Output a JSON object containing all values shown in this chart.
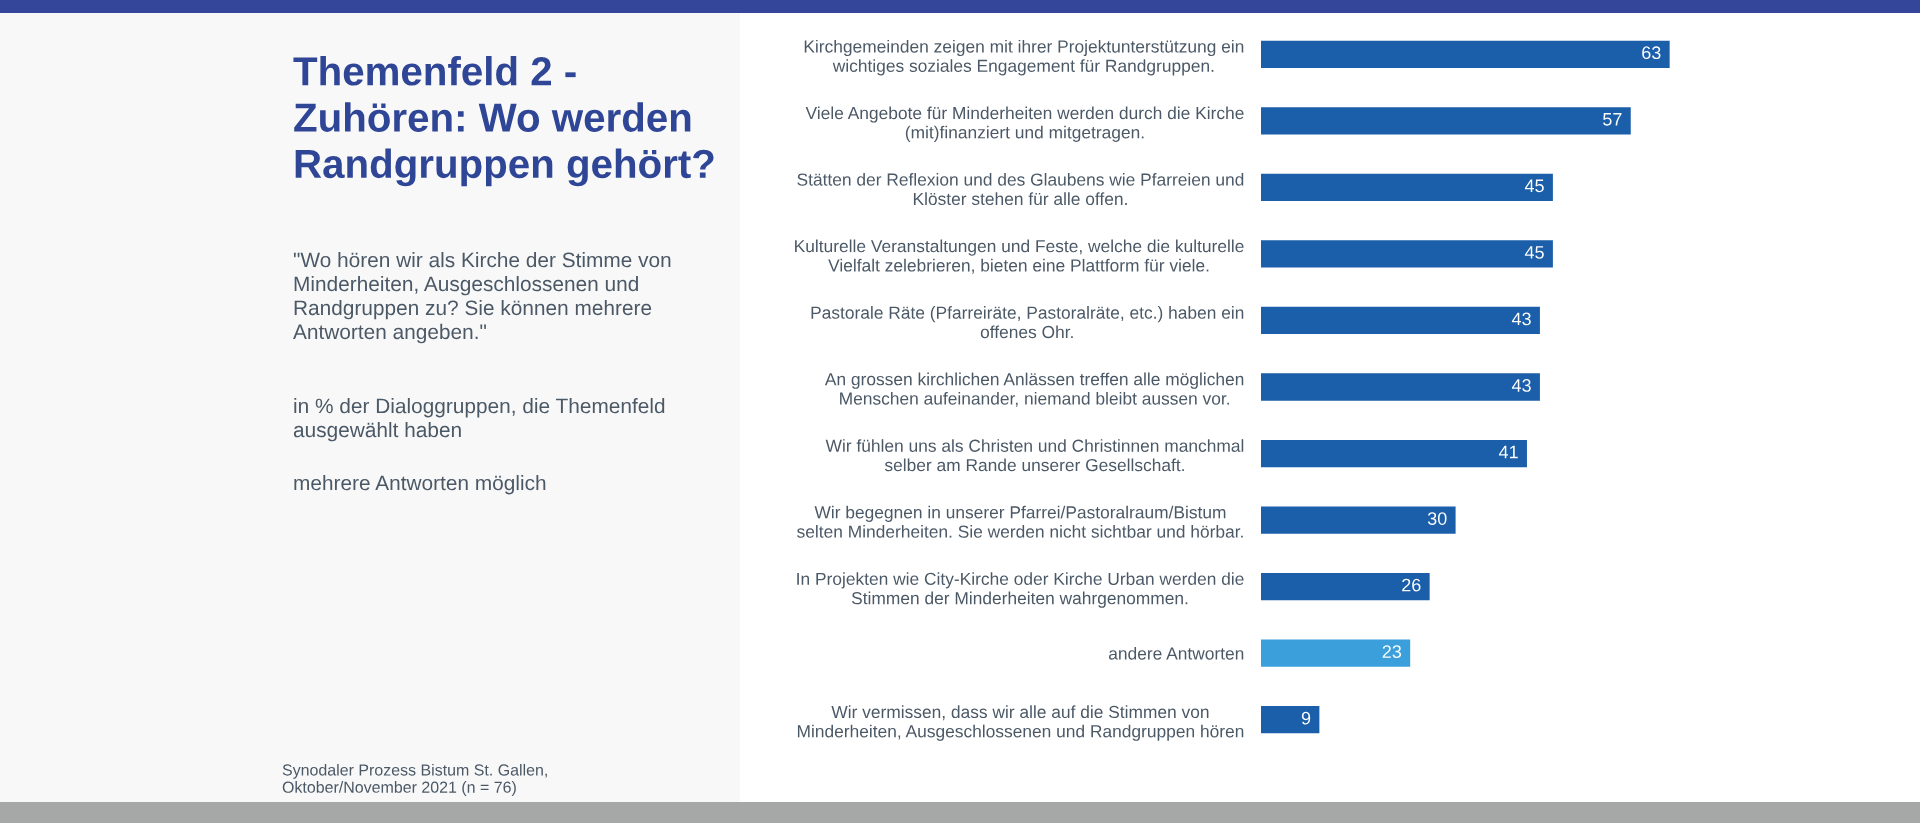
{
  "chart_data": {
    "type": "bar",
    "orientation": "horizontal",
    "title": "Themenfeld 2 -\nZuhören: Wo werden\nRandgruppen gehört?",
    "subtitle": "\"Wo hören wir als Kirche der Stimme von\nMinderheiten, Ausgeschlossenen und\nRandgruppen zu? Sie können mehrere\nAntworten angeben.\"",
    "annotations": [
      "in % der Dialoggruppen, die Themenfeld\nausgewählt haben",
      "mehrere Antworten möglich",
      "Synodaler Prozess Bistum St. Gallen,\nOktober/November 2021 (n = 76)"
    ],
    "categories": [
      "Kirchgemeinden zeigen mit ihrer Projektunterstützung ein\nwichtiges soziales Engagement für Randgruppen.",
      "Viele Angebote für Minderheiten werden durch die Kirche\n(mit)finanziert und mitgetragen.",
      "Stätten der Reflexion und des Glaubens wie Pfarreien und\nKlöster stehen für alle offen.",
      "Kulturelle Veranstaltungen und Feste, welche die kulturelle\nVielfalt zelebrieren, bieten eine Plattform für viele.",
      "Pastorale Räte (Pfarreiräte, Pastoralräte, etc.) haben ein\noffenes Ohr.",
      "An grossen kirchlichen Anlässen treffen alle möglichen\nMenschen aufeinander, niemand bleibt aussen vor.",
      "Wir fühlen uns als Christen und Christinnen manchmal\nselber am Rande unserer Gesellschaft.",
      "Wir begegnen in unserer Pfarrei/Pastoralraum/Bistum\nselten Minderheiten. Sie werden nicht sichtbar und hörbar.",
      "In Projekten wie City-Kirche oder Kirche Urban werden die\nStimmen der Minderheiten wahrgenommen.",
      "andere Antworten",
      "Wir vermissen, dass wir alle auf die Stimmen von\nMinderheiten, Ausgeschlossenen und Randgruppen hören"
    ],
    "values": [
      63,
      57,
      45,
      45,
      43,
      43,
      41,
      30,
      26,
      23,
      9
    ],
    "colors": [
      "#1b5ea9",
      "#1b5ea9",
      "#1b5ea9",
      "#1b5ea9",
      "#1b5ea9",
      "#1b5ea9",
      "#1b5ea9",
      "#1b5ea9",
      "#1b5ea9",
      "#3a9fdb",
      "#1b5ea9"
    ],
    "data_labels": true,
    "tick_labels": "y"
  }
}
